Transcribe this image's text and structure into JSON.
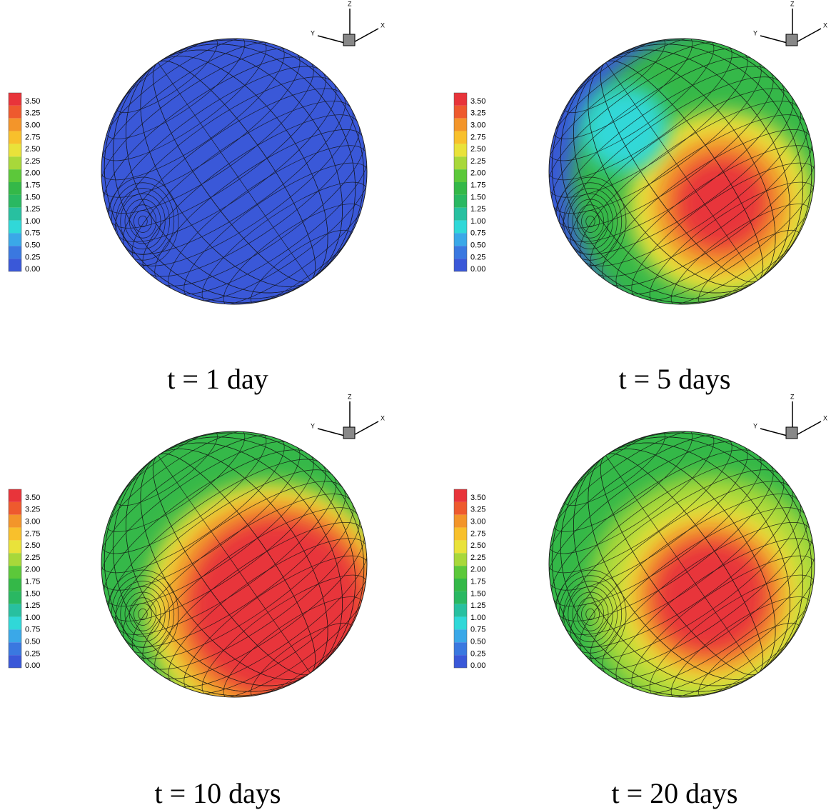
{
  "colorbar": {
    "levels": [
      "3.50",
      "3.25",
      "3.00",
      "2.75",
      "2.50",
      "2.25",
      "2.00",
      "1.75",
      "1.50",
      "1.25",
      "1.00",
      "0.75",
      "0.50",
      "0.25",
      "0.00"
    ],
    "colors": [
      "#e8343a",
      "#ee5a2e",
      "#f3952a",
      "#f8c02c",
      "#e9e23a",
      "#a8d83a",
      "#5cc83a",
      "#34b848",
      "#2ab862",
      "#28c0a0",
      "#30d8d8",
      "#3aa8e8",
      "#3a78e0",
      "#3a58d8"
    ]
  },
  "panels": [
    {
      "caption": "t = 1 day",
      "axes": {
        "x": "X",
        "y": "Y",
        "z": "Z"
      }
    },
    {
      "caption": "t = 5 days",
      "axes": {
        "x": "X",
        "y": "Y",
        "z": "Z"
      }
    },
    {
      "caption": "t = 10 days",
      "axes": {
        "x": "X",
        "y": "Y",
        "z": "Z"
      }
    },
    {
      "caption": "t = 20 days",
      "axes": {
        "x": "X",
        "y": "Y",
        "z": "Z"
      }
    }
  ]
}
